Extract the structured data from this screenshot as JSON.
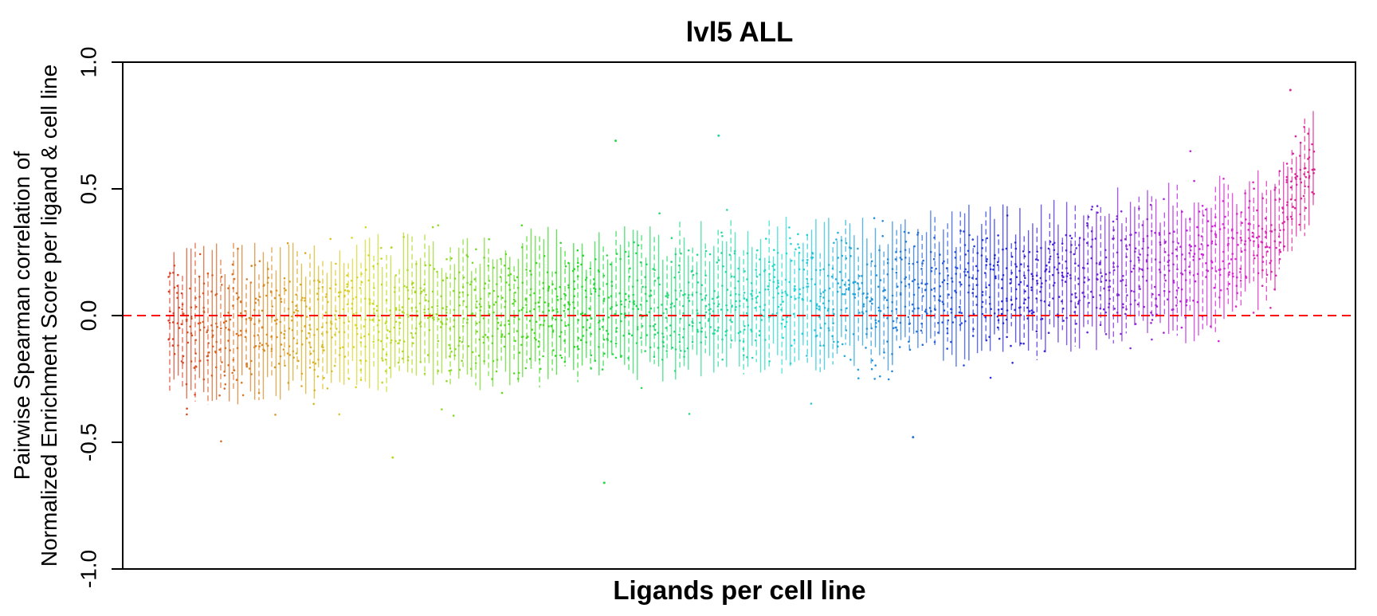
{
  "chart_data": {
    "type": "scatter",
    "title": "lvl5 ALL",
    "xlabel": "Ligands per cell line",
    "ylabel_lines": [
      "Pairwise Spearman correlation of",
      "Normalized Enrichment Score per ligand & cell line"
    ],
    "ylim": [
      -1.0,
      1.0
    ],
    "y_ticks": [
      "-1.0",
      "-0.5",
      "0.0",
      "0.5",
      "1.0"
    ],
    "y_tick_values": [
      -1.0,
      -0.5,
      0.0,
      0.5,
      1.0
    ],
    "reference_line": {
      "y": 0.0,
      "style": "dashed",
      "color": "#ff0000"
    },
    "n_groups": 270,
    "group_order": "sorted by median correlation",
    "median_trend": [
      {
        "group_fraction": 0.0,
        "median": -0.05
      },
      {
        "group_fraction": 0.1,
        "median": -0.02
      },
      {
        "group_fraction": 0.2,
        "median": 0.0
      },
      {
        "group_fraction": 0.3,
        "median": 0.02
      },
      {
        "group_fraction": 0.4,
        "median": 0.04
      },
      {
        "group_fraction": 0.5,
        "median": 0.06
      },
      {
        "group_fraction": 0.6,
        "median": 0.08
      },
      {
        "group_fraction": 0.7,
        "median": 0.11
      },
      {
        "group_fraction": 0.8,
        "median": 0.15
      },
      {
        "group_fraction": 0.9,
        "median": 0.22
      },
      {
        "group_fraction": 0.96,
        "median": 0.3
      },
      {
        "group_fraction": 1.0,
        "median": 0.6
      }
    ],
    "spread_trend": [
      {
        "group_fraction": 0.0,
        "spread": 0.17
      },
      {
        "group_fraction": 0.5,
        "spread": 0.16
      },
      {
        "group_fraction": 0.9,
        "spread": 0.17
      },
      {
        "group_fraction": 1.0,
        "spread": 0.12
      }
    ],
    "highlighted_extremes": [
      {
        "group_fraction": 0.195,
        "y": -0.56
      },
      {
        "group_fraction": 0.38,
        "y": -0.66
      },
      {
        "group_fraction": 0.39,
        "y": 0.69
      },
      {
        "group_fraction": 0.48,
        "y": 0.71
      },
      {
        "group_fraction": 0.65,
        "y": -0.48
      },
      {
        "group_fraction": 0.98,
        "y": 0.89
      }
    ],
    "color_scale": "rainbow hue gradient from red (#f8766d) through green, cyan, blue, purple to pink (#ff61c3)",
    "grid": false,
    "legend": "none"
  }
}
